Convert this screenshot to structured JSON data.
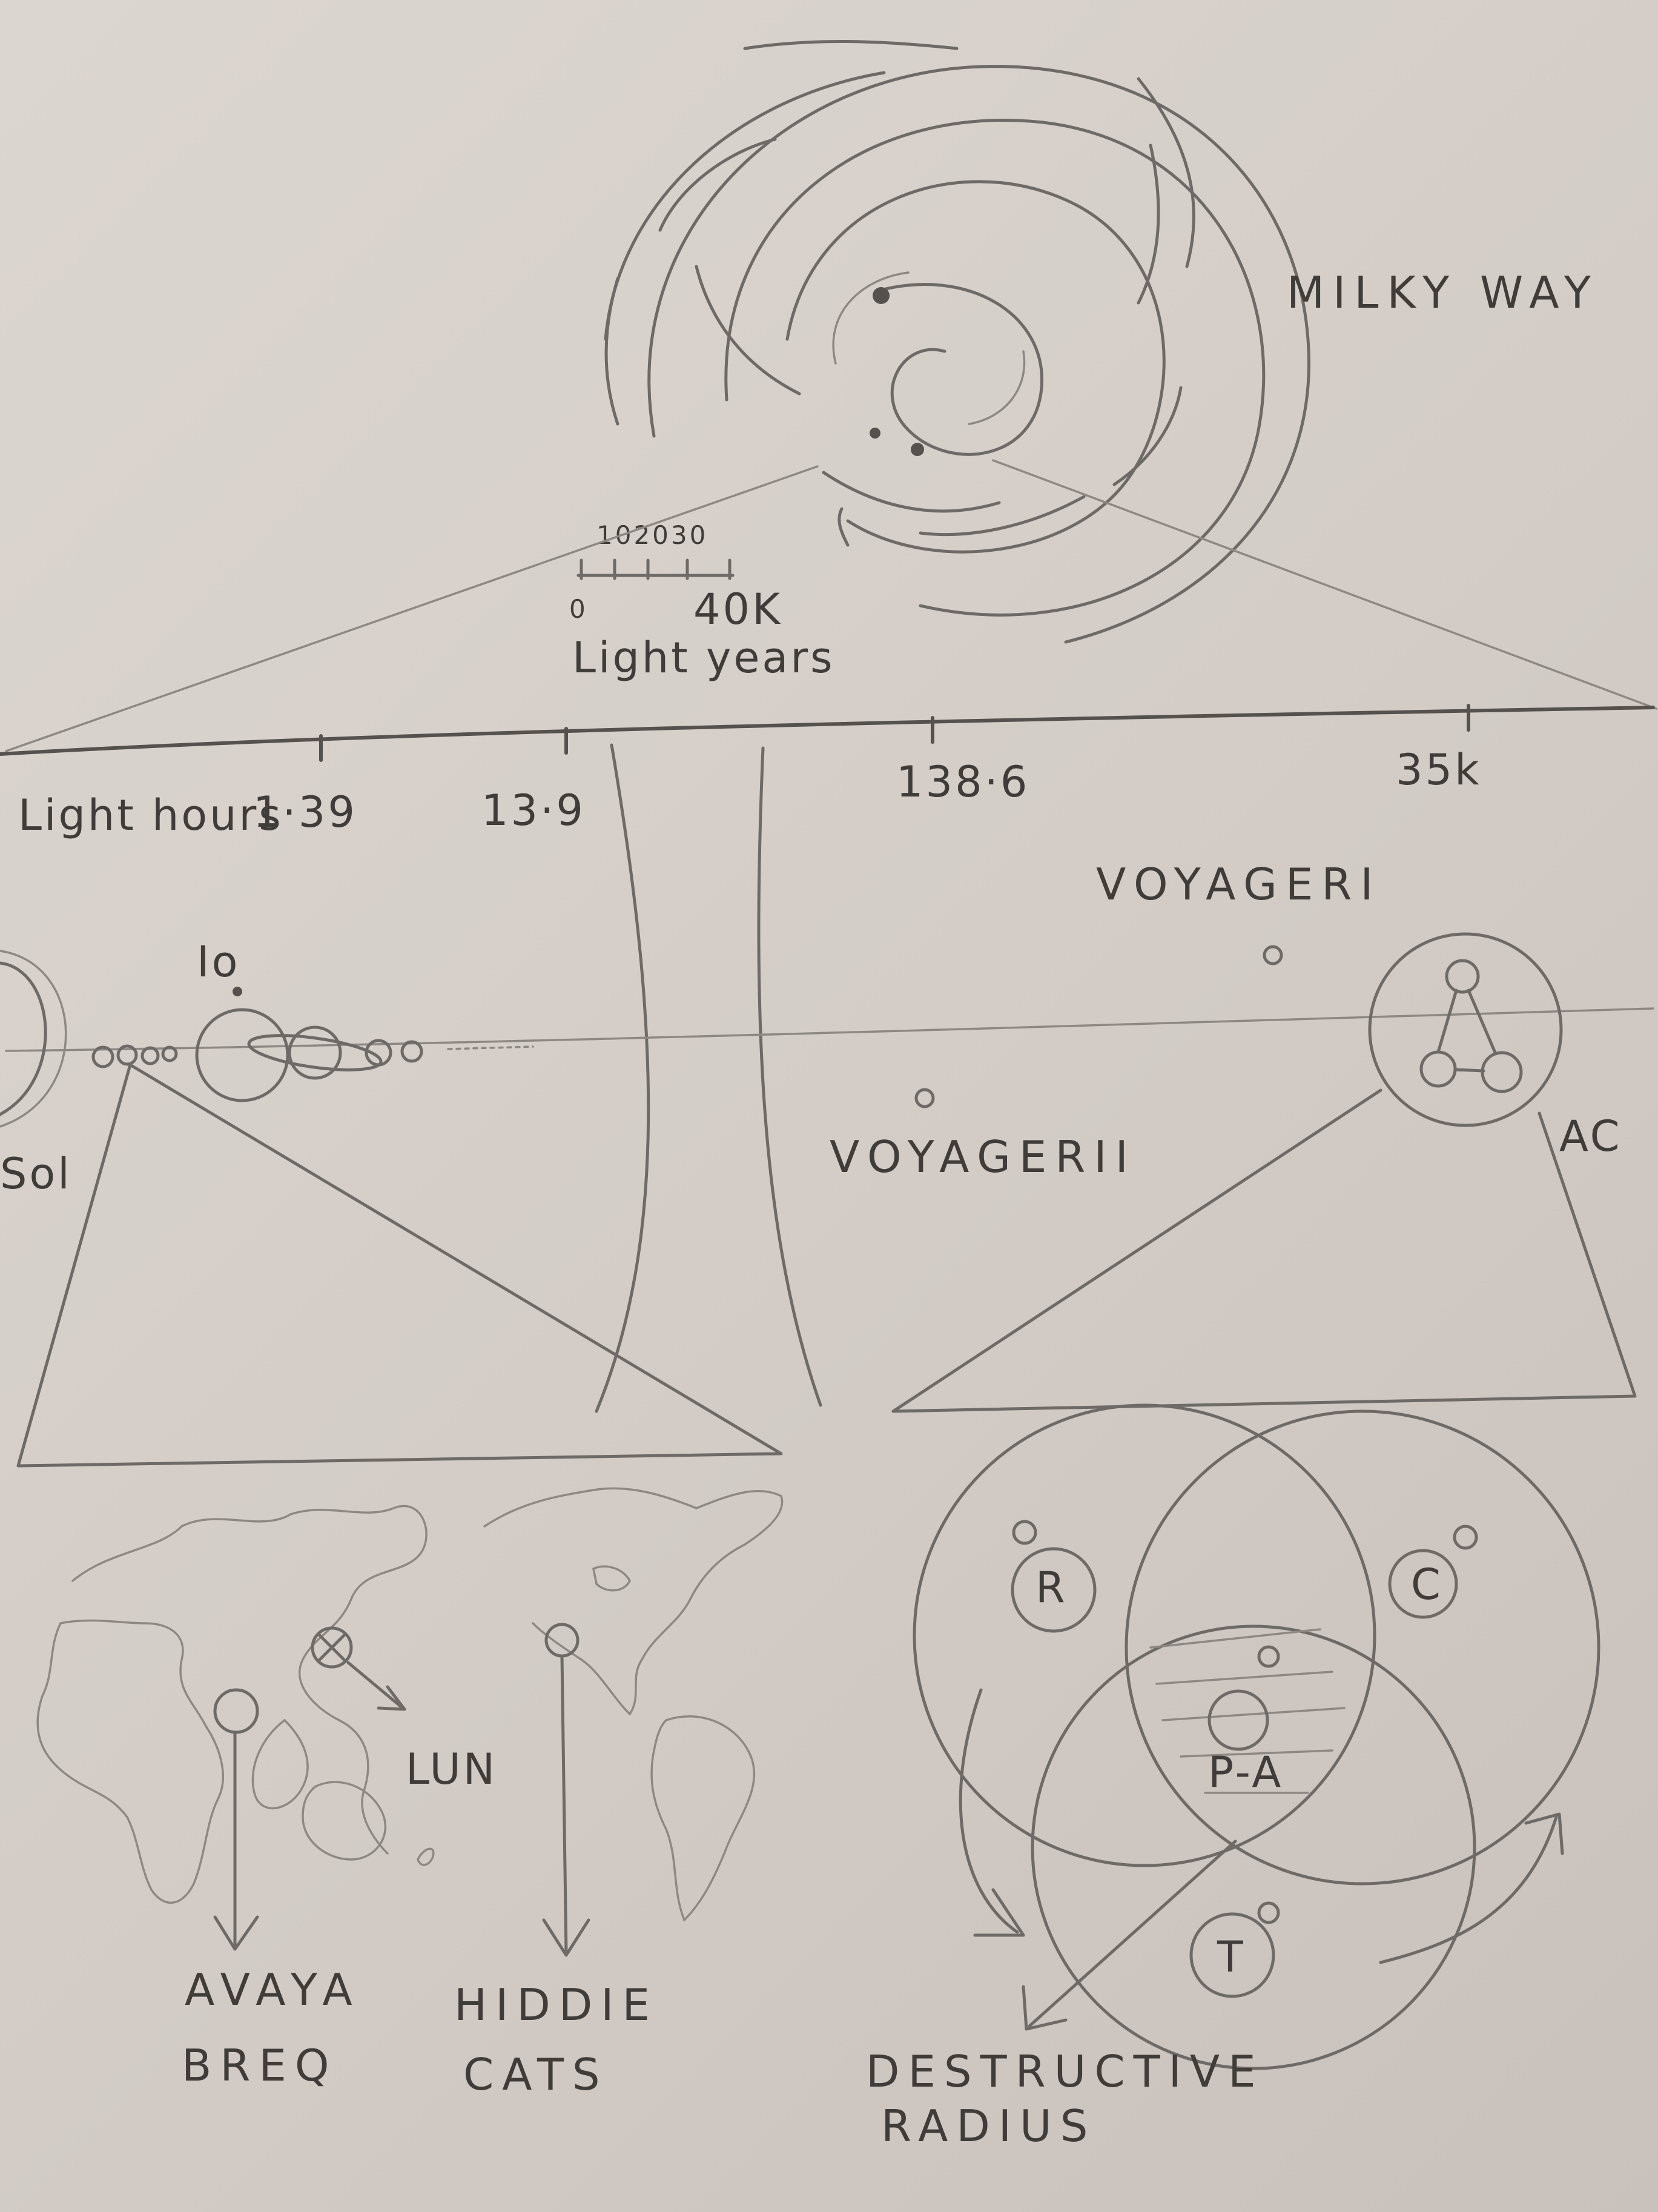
{
  "labels": {
    "milky_way": "MILKY WAY",
    "scale_ticks": "102030",
    "scale_zero": "0",
    "scale_40k": "40K",
    "light_years": "Light years",
    "light_hours_prefix": "Light hours",
    "tick_1": "1·39",
    "tick_2": "13·9",
    "tick_3": "138·6",
    "tick_4": "35k",
    "voyager_1": "VOYAGERI",
    "voyager_2": "VOYAGERII",
    "io": "Io",
    "sol": "Sol",
    "ac": "AC",
    "lun": "LUN",
    "avaya_1": "AVAYA",
    "avaya_2": "BREQ",
    "hiddie_1": "HIDDIE",
    "hiddie_2": "CATS",
    "r": "R",
    "c": "C",
    "pa": "P-A",
    "t": "T",
    "destructive_1": "DESTRUCTIVE",
    "destructive_2": "RADIUS"
  },
  "colors": {
    "paper": "#d6cfc9",
    "pencil": "#6e6a67",
    "ink": "#3f3c3a"
  }
}
